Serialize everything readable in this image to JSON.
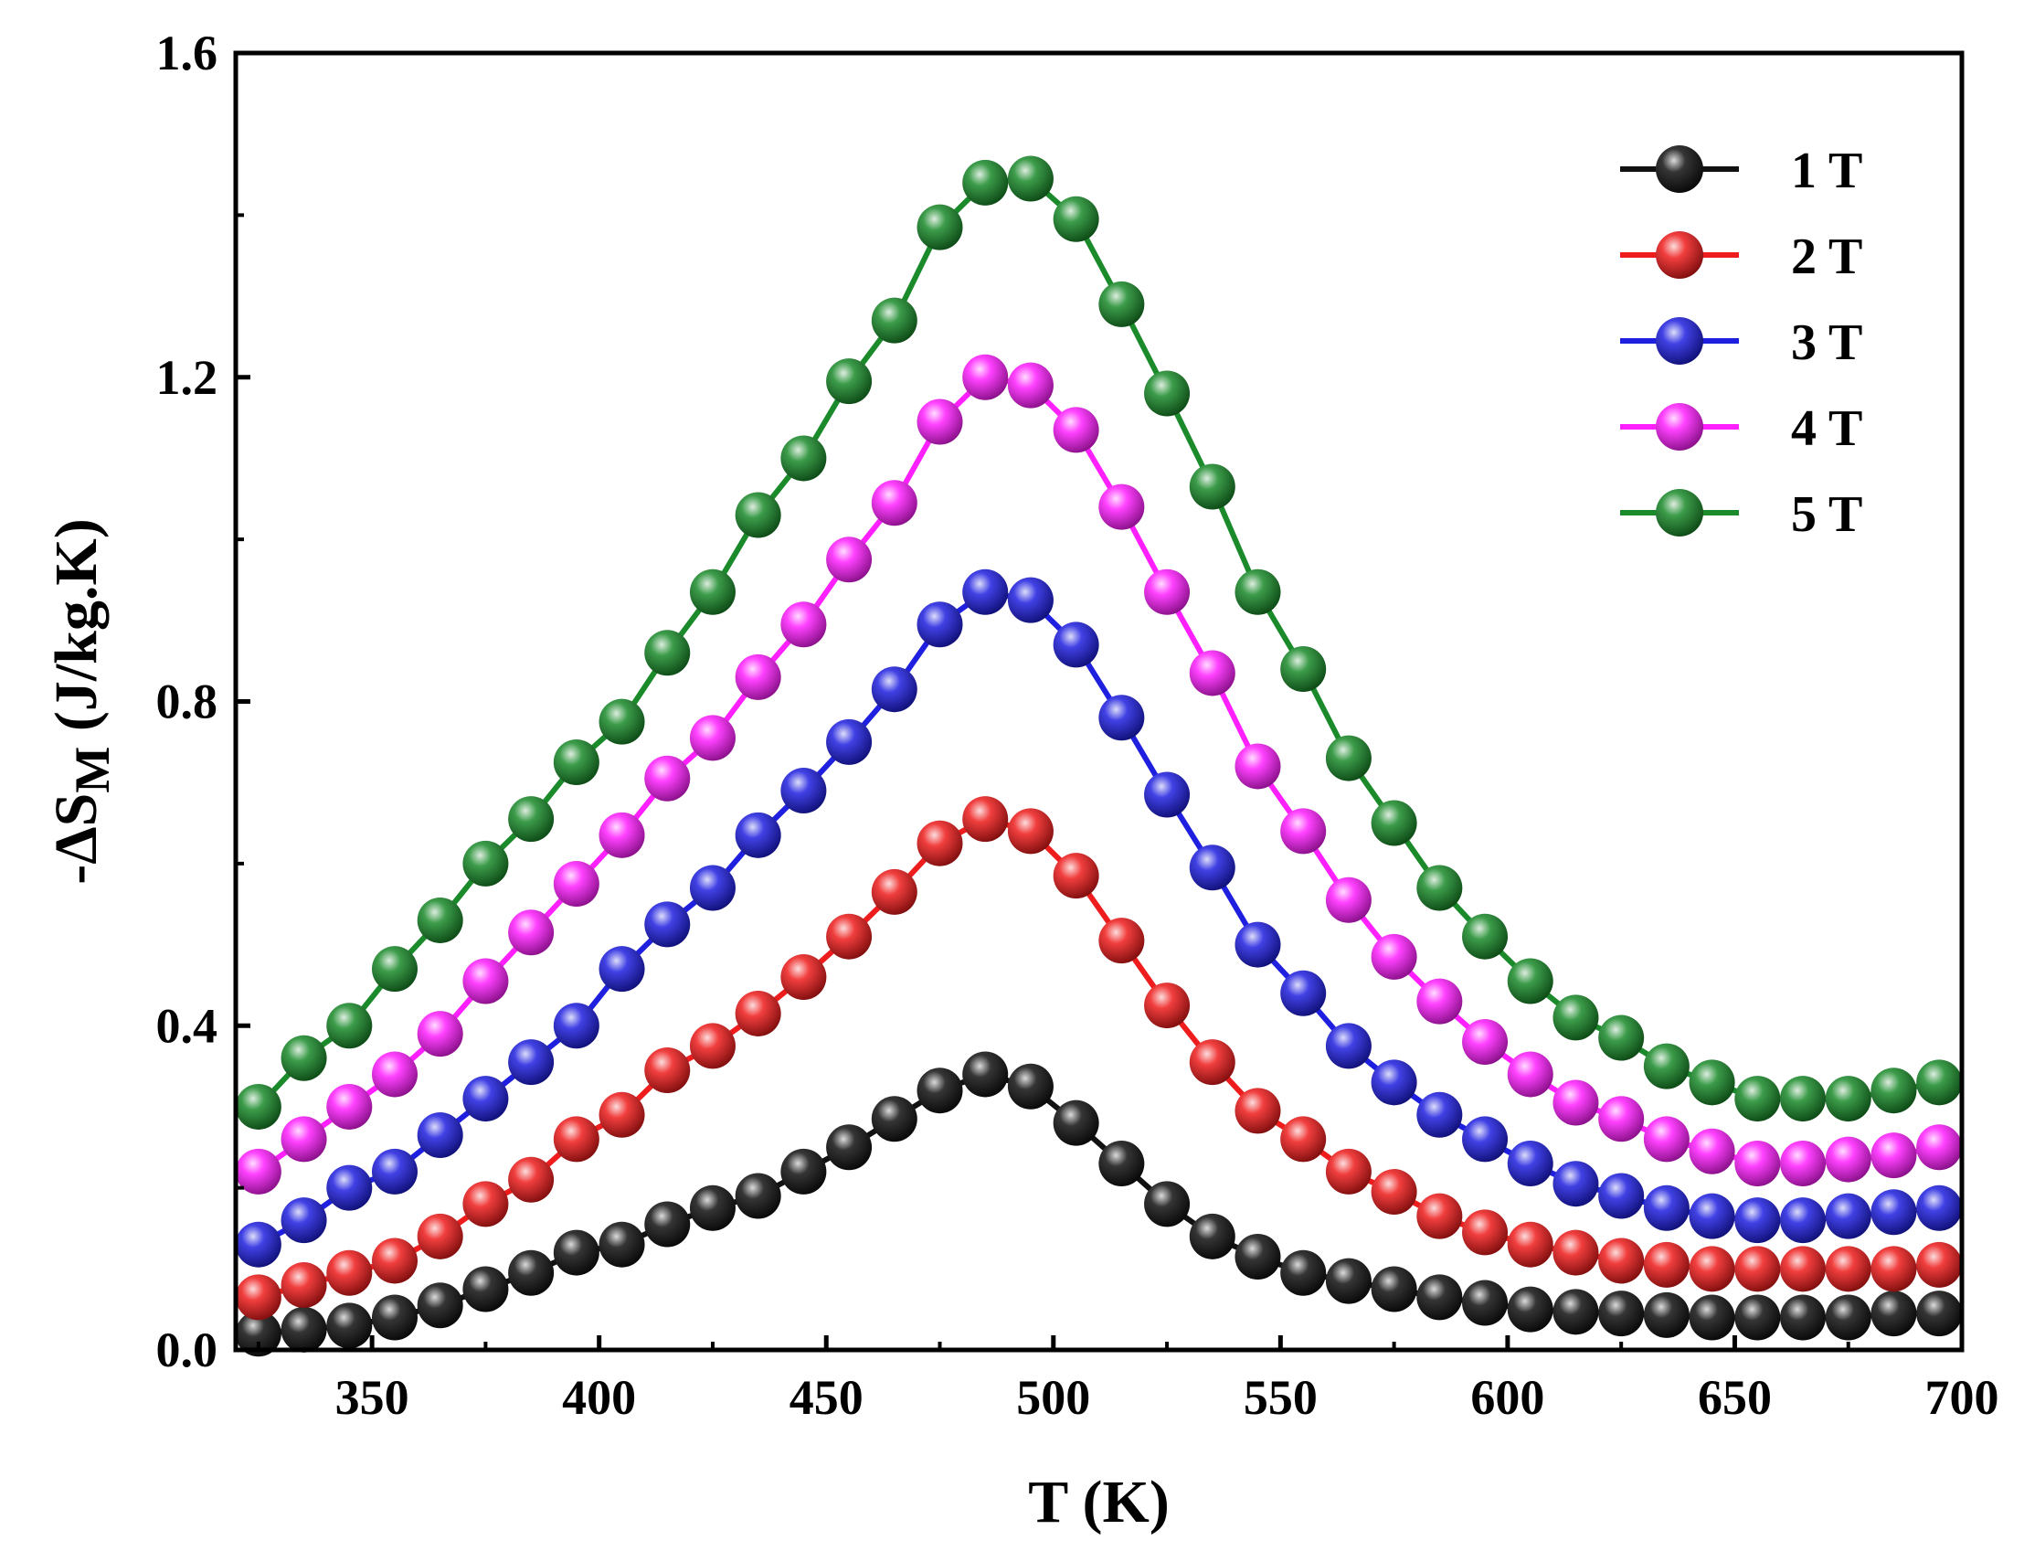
{
  "chart_data": {
    "type": "line",
    "title": "",
    "xlabel": "T (K)",
    "ylabel_main": "-ΔS",
    "ylabel_sub": "M",
    "ylabel_unit": " (J/kg.K)",
    "xlim": [
      320,
      700
    ],
    "ylim": [
      0.0,
      1.6
    ],
    "x_ticks": [
      350,
      400,
      450,
      500,
      550,
      600,
      650,
      700
    ],
    "x_tick_labels": [
      "350",
      "400",
      "450",
      "500",
      "550",
      "600",
      "650",
      "700"
    ],
    "y_ticks": [
      0.0,
      0.4,
      0.8,
      1.2,
      1.6
    ],
    "y_tick_labels": [
      "0.0",
      "0.4",
      "0.8",
      "1.2",
      "1.6"
    ],
    "grid": false,
    "legend_position": "top-right",
    "x": [
      325,
      335,
      345,
      355,
      365,
      375,
      385,
      395,
      405,
      415,
      425,
      435,
      445,
      455,
      465,
      475,
      485,
      495,
      505,
      515,
      525,
      535,
      545,
      555,
      565,
      575,
      585,
      595,
      605,
      615,
      625,
      635,
      645,
      655,
      665,
      675,
      685,
      695
    ],
    "series": [
      {
        "name": "1 T",
        "color": "#111111",
        "values": [
          0.02,
          0.025,
          0.03,
          0.04,
          0.055,
          0.075,
          0.095,
          0.12,
          0.13,
          0.155,
          0.175,
          0.19,
          0.22,
          0.25,
          0.285,
          0.32,
          0.34,
          0.325,
          0.28,
          0.23,
          0.18,
          0.14,
          0.115,
          0.095,
          0.085,
          0.075,
          0.065,
          0.058,
          0.05,
          0.047,
          0.045,
          0.043,
          0.04,
          0.04,
          0.04,
          0.04,
          0.045,
          0.045
        ]
      },
      {
        "name": "2 T",
        "color": "#ee1c1c",
        "values": [
          0.065,
          0.08,
          0.095,
          0.11,
          0.14,
          0.18,
          0.21,
          0.26,
          0.29,
          0.345,
          0.375,
          0.415,
          0.46,
          0.51,
          0.565,
          0.625,
          0.655,
          0.64,
          0.585,
          0.505,
          0.425,
          0.355,
          0.295,
          0.26,
          0.22,
          0.195,
          0.165,
          0.145,
          0.13,
          0.12,
          0.11,
          0.105,
          0.1,
          0.1,
          0.1,
          0.1,
          0.1,
          0.105
        ]
      },
      {
        "name": "3 T",
        "color": "#1f1fe0",
        "values": [
          0.13,
          0.16,
          0.2,
          0.22,
          0.265,
          0.31,
          0.355,
          0.4,
          0.47,
          0.525,
          0.57,
          0.635,
          0.69,
          0.75,
          0.815,
          0.895,
          0.935,
          0.925,
          0.87,
          0.78,
          0.685,
          0.595,
          0.5,
          0.44,
          0.375,
          0.33,
          0.29,
          0.26,
          0.23,
          0.205,
          0.19,
          0.175,
          0.165,
          0.16,
          0.16,
          0.165,
          0.17,
          0.175
        ]
      },
      {
        "name": "4 T",
        "color": "#ff1fff",
        "values": [
          0.22,
          0.26,
          0.3,
          0.34,
          0.39,
          0.455,
          0.515,
          0.575,
          0.635,
          0.705,
          0.755,
          0.83,
          0.895,
          0.975,
          1.045,
          1.145,
          1.2,
          1.19,
          1.135,
          1.04,
          0.935,
          0.835,
          0.72,
          0.64,
          0.555,
          0.485,
          0.43,
          0.38,
          0.34,
          0.305,
          0.285,
          0.26,
          0.245,
          0.23,
          0.23,
          0.235,
          0.24,
          0.25
        ]
      },
      {
        "name": "5 T",
        "color": "#1a8a2a",
        "values": [
          0.3,
          0.36,
          0.4,
          0.47,
          0.53,
          0.6,
          0.655,
          0.725,
          0.775,
          0.86,
          0.935,
          1.03,
          1.1,
          1.195,
          1.27,
          1.385,
          1.44,
          1.445,
          1.395,
          1.29,
          1.18,
          1.065,
          0.935,
          0.84,
          0.73,
          0.65,
          0.57,
          0.51,
          0.455,
          0.41,
          0.385,
          0.35,
          0.33,
          0.31,
          0.31,
          0.31,
          0.32,
          0.33
        ]
      }
    ]
  }
}
